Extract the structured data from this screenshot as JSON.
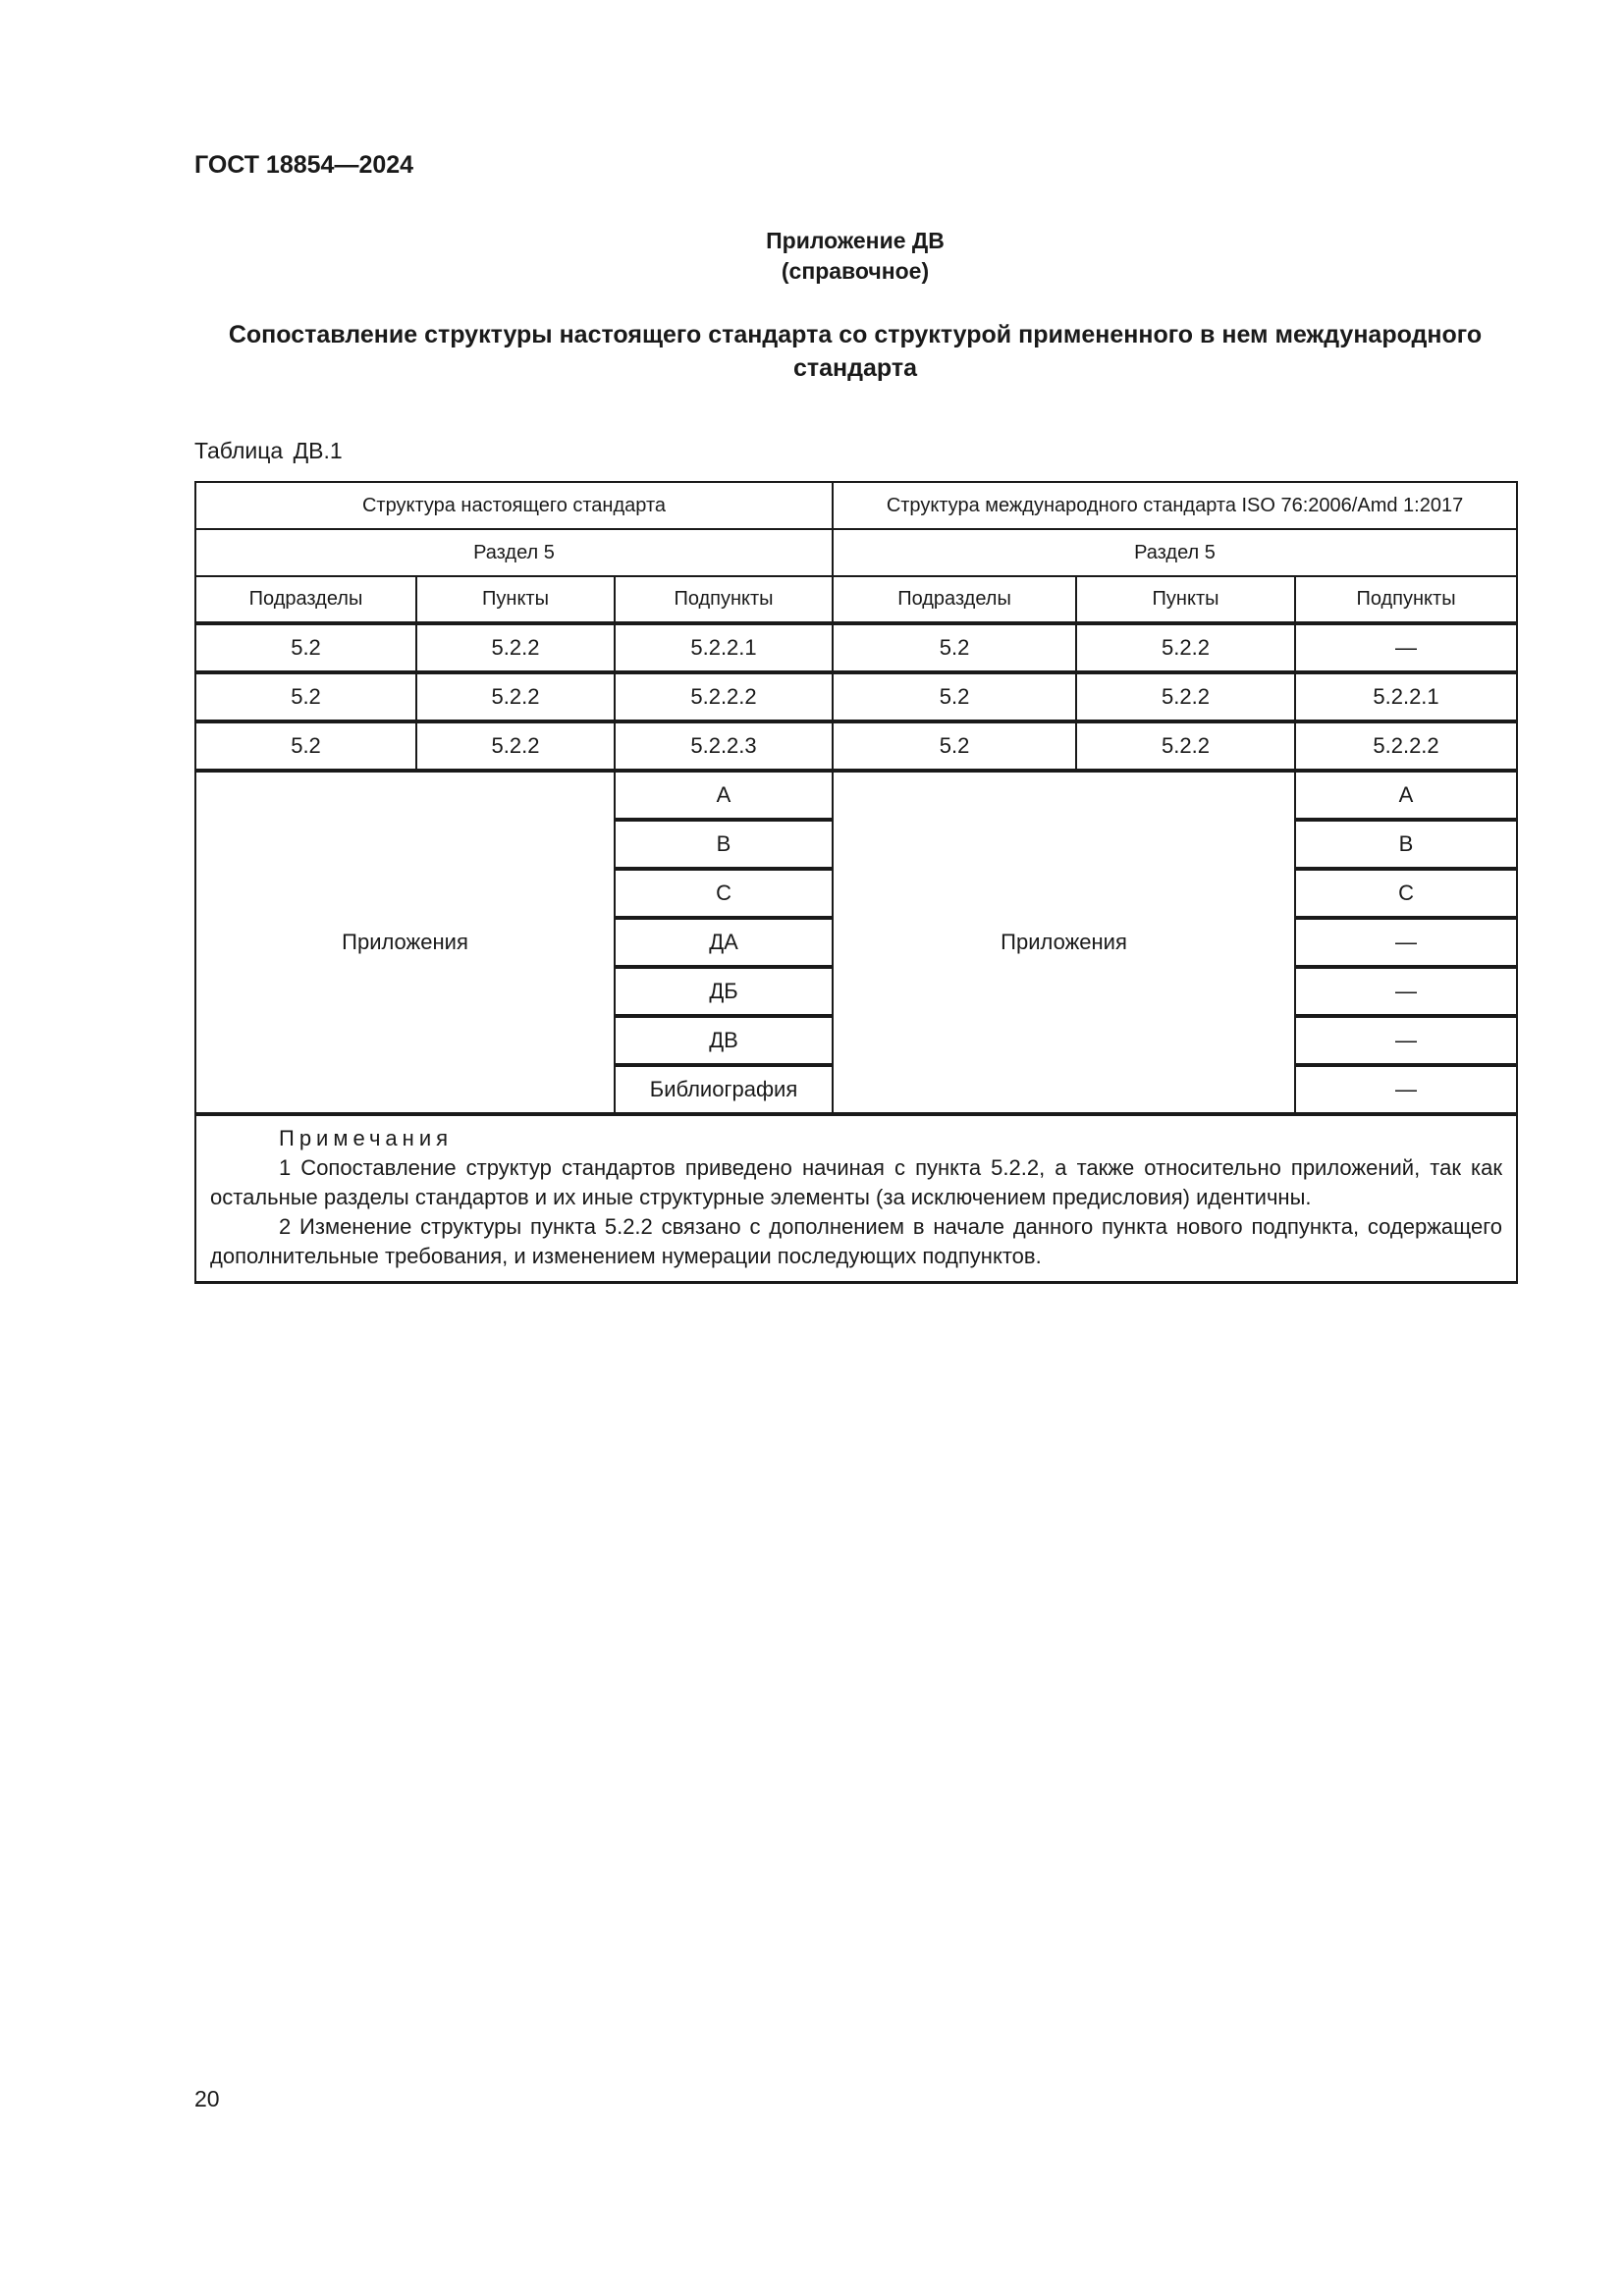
{
  "header": {
    "doc_id": "ГОСТ 18854—2024"
  },
  "appendix": {
    "title": "Приложение ДВ",
    "kind": "(справочное)"
  },
  "title": "Сопоставление структуры настоящего стандарта со структурой примененного в нем международного стандарта",
  "table": {
    "caption_word": "Таблица",
    "caption_num": "ДВ.1",
    "left_header": "Структура настоящего стандарта",
    "right_header": "Структура международного стандарта ISO 76:2006/Amd 1:2017",
    "section_left": "Раздел 5",
    "section_right": "Раздел 5",
    "columns": [
      "Подразделы",
      "Пункты",
      "Подпункты",
      "Подразделы",
      "Пункты",
      "Подпункты"
    ],
    "rows": [
      [
        "5.2",
        "5.2.2",
        "5.2.2.1",
        "5.2",
        "5.2.2",
        "—"
      ],
      [
        "5.2",
        "5.2.2",
        "5.2.2.2",
        "5.2",
        "5.2.2",
        "5.2.2.1"
      ],
      [
        "5.2",
        "5.2.2",
        "5.2.2.3",
        "5.2",
        "5.2.2",
        "5.2.2.2"
      ]
    ],
    "appendix_label_left": "Приложения",
    "appendix_label_right": "Приложения",
    "appendix_rows": [
      [
        "А",
        "А"
      ],
      [
        "В",
        "В"
      ],
      [
        "С",
        "С"
      ],
      [
        "ДА",
        "—"
      ],
      [
        "ДБ",
        "—"
      ],
      [
        "ДВ",
        "—"
      ],
      [
        "Библиография",
        "—"
      ]
    ],
    "notes_title": "Примечания",
    "notes": [
      "1 Сопоставление структур стандартов приведено начиная с пункта 5.2.2, а также относительно приложений, так как остальные разделы стандартов и их иные структурные элементы (за исключением предисловия) идентичны.",
      "2 Изменение структуры пункта 5.2.2 связано с дополнением в начале данного пункта нового подпункта, содержащего дополнительные требования, и изменением нумерации последующих подпунктов."
    ]
  },
  "page_number": "20"
}
